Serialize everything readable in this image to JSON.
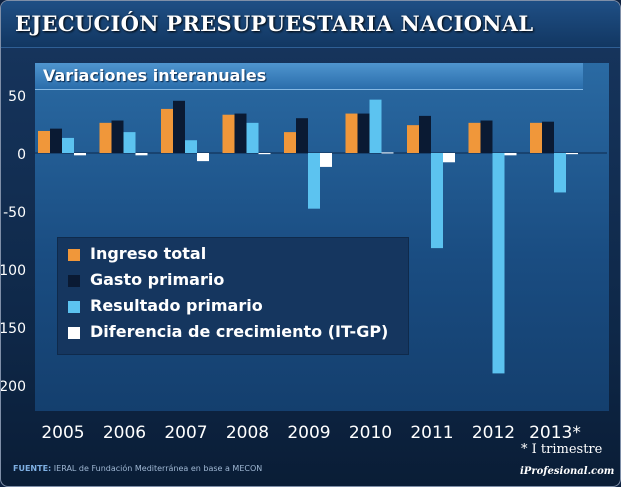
{
  "header": {
    "title": "EJECUCIÓN PRESUPUESTARIA NACIONAL"
  },
  "chart_data": {
    "type": "bar",
    "subtitle": "Variaciones interanuales",
    "categories": [
      "2005",
      "2006",
      "2007",
      "2008",
      "2009",
      "2010",
      "2011",
      "2012",
      "2013*"
    ],
    "series": [
      {
        "name": "Ingreso total",
        "color": "#f0973a",
        "values": [
          19,
          26,
          38,
          33,
          18,
          34,
          24,
          26,
          26
        ]
      },
      {
        "name": "Gasto primario",
        "color": "#0a1a33",
        "values": [
          21,
          28,
          45,
          34,
          30,
          34,
          32,
          28,
          27
        ]
      },
      {
        "name": "Resultado primario",
        "color": "#5cc3f0",
        "values": [
          13,
          18,
          11,
          26,
          -48,
          46,
          -82,
          -190,
          -34
        ]
      },
      {
        "name": "Diferencia de crecimiento (IT-GP)",
        "color": "#ffffff",
        "values": [
          -2,
          -2,
          -7,
          -1,
          -12,
          0.5,
          -8,
          -2,
          -1
        ]
      }
    ],
    "yticks": [
      50,
      0,
      -50,
      -100,
      -150,
      -200
    ],
    "ylim": [
      -220,
      50
    ],
    "grid": false,
    "legend_position": "lower-left",
    "footnote": "* I trimestre"
  },
  "footer": {
    "source_label": "FUENTE:",
    "source_text": "IERAL de Fundación Mediterránea en base a MECON",
    "brand": "iProfesional.com"
  }
}
